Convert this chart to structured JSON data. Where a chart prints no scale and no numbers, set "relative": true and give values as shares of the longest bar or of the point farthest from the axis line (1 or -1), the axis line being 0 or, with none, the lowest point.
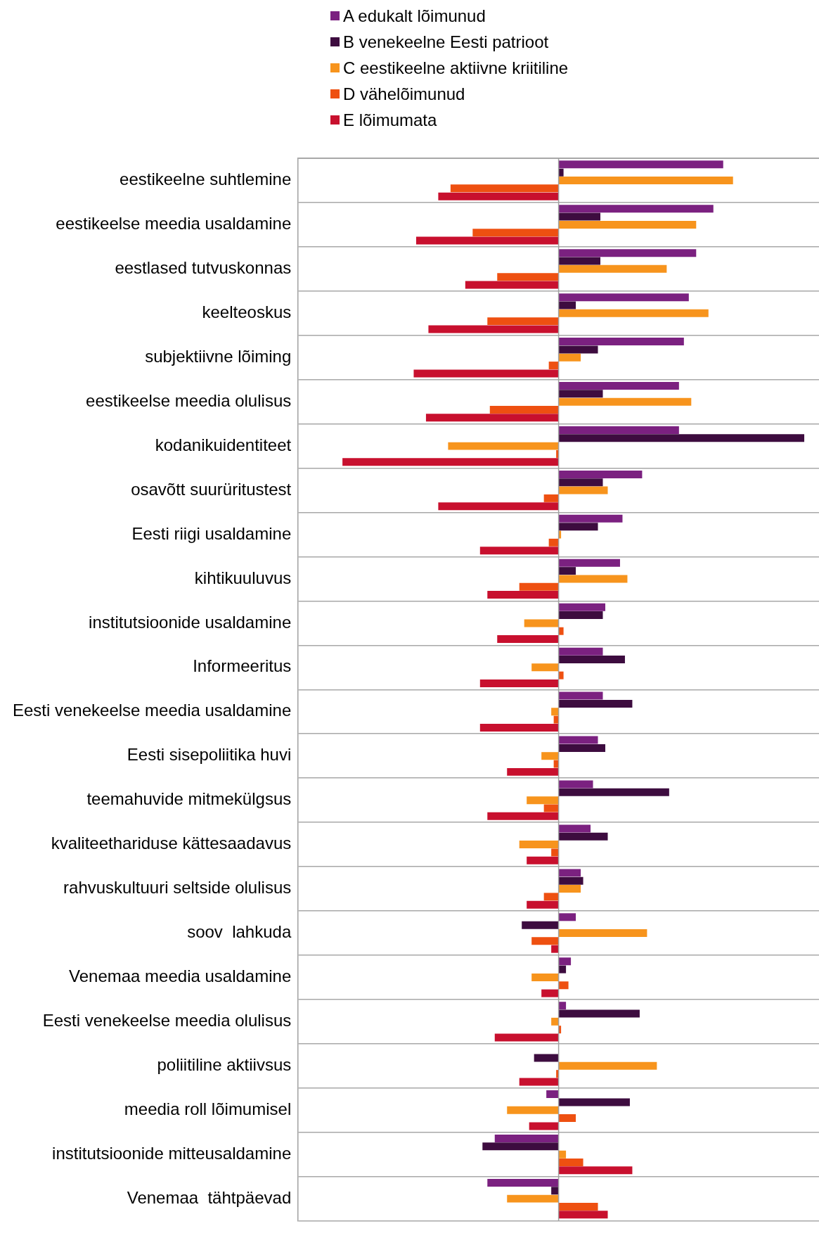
{
  "chart_data": {
    "type": "bar",
    "orientation": "horizontal",
    "relative": true,
    "grid": "y",
    "legend": "top",
    "categories": [
      "eestikeelne suhtlemine",
      "eestikeelse meedia usaldamine",
      "eestlased tutvuskonnas",
      "keelteoskus",
      "subjektiivne lõiming",
      "eestikeelse meedia olulisus",
      "kodanikuidentiteet",
      "osavõtt suurüritustest",
      "Eesti riigi usaldamine",
      "kihtikuuluvus",
      "institutsioonide usaldamine",
      "Informeeritus",
      "Eesti venekeelse meedia usaldamine",
      "Eesti sisepoliitika huvi",
      "teemahuvide mitmekülgsus",
      "kvaliteethariduse kättesaadavus",
      "rahvuskultuuri seltside olulisus",
      "soov  lahkuda",
      "Venemaa meedia usaldamine",
      "Eesti venekeelse meedia olulisus",
      "poliitiline aktiivsus",
      "meedia roll lõimumisel",
      "institutsioonide mitteusaldamine",
      "Venemaa  tähtpäevad"
    ],
    "series": [
      {
        "name": "A edukalt lõimunud",
        "color": "#7b2180",
        "values": [
          0.67,
          0.63,
          0.56,
          0.53,
          0.51,
          0.49,
          0.49,
          0.34,
          0.26,
          0.25,
          0.19,
          0.18,
          0.18,
          0.16,
          0.14,
          0.13,
          0.09,
          0.07,
          0.05,
          0.03,
          0,
          -0.05,
          -0.26,
          -0.29
        ]
      },
      {
        "name": "B venekeelne Eesti patrioot",
        "color": "#3d0c3f",
        "values": [
          0.02,
          0.17,
          0.17,
          0.07,
          0.16,
          0.18,
          1,
          0.18,
          0.16,
          0.07,
          0.18,
          0.27,
          0.3,
          0.19,
          0.45,
          0.2,
          0.1,
          -0.15,
          0.03,
          0.33,
          -0.1,
          0.29,
          -0.31,
          -0.03
        ]
      },
      {
        "name": "C eestikeelne aktiivne kriitiline",
        "color": "#f7941d",
        "values": [
          0.71,
          0.56,
          0.44,
          0.61,
          0.09,
          0.54,
          -0.45,
          0.2,
          0.01,
          0.28,
          -0.14,
          -0.11,
          -0.03,
          -0.07,
          -0.13,
          -0.16,
          0.09,
          0.36,
          -0.11,
          -0.03,
          0.4,
          -0.21,
          0.03,
          -0.21
        ]
      },
      {
        "name": "D vähelõimunud",
        "color": "#ee5011",
        "values": [
          -0.44,
          -0.35,
          -0.25,
          -0.29,
          -0.04,
          -0.28,
          -0.01,
          -0.06,
          -0.04,
          -0.16,
          0.02,
          0.02,
          -0.02,
          -0.02,
          -0.06,
          -0.03,
          -0.06,
          -0.11,
          0.04,
          0.01,
          -0.01,
          0.07,
          0.1,
          0.16
        ]
      },
      {
        "name": "E lõimumata",
        "color": "#c8102e",
        "values": [
          -0.49,
          -0.58,
          -0.38,
          -0.53,
          -0.59,
          -0.54,
          -0.88,
          -0.49,
          -0.32,
          -0.29,
          -0.25,
          -0.32,
          -0.32,
          -0.21,
          -0.29,
          -0.13,
          -0.13,
          -0.03,
          -0.07,
          -0.26,
          -0.16,
          -0.12,
          0.3,
          0.2
        ]
      }
    ]
  }
}
